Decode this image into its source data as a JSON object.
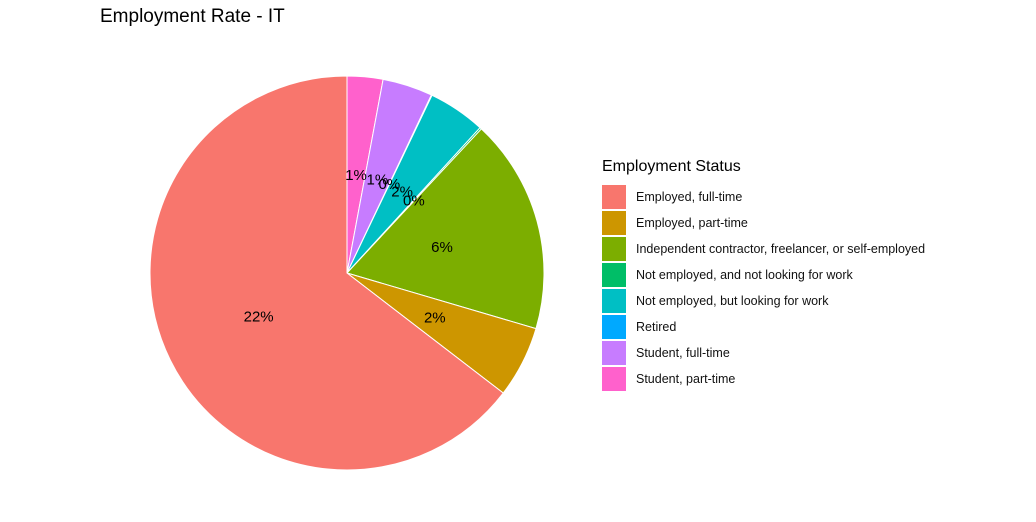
{
  "chart_data": {
    "type": "pie",
    "title": "Employment Rate - IT",
    "legend_title": "Employment Status",
    "legend_position": "right",
    "slices": [
      {
        "name": "Employed, full-time",
        "value": 22,
        "label": "22%",
        "color": "#F8766D"
      },
      {
        "name": "Employed, part-time",
        "value": 2,
        "label": "2%",
        "color": "#CD9600"
      },
      {
        "name": "Independent contractor, freelancer, or self-employed",
        "value": 6,
        "label": "6%",
        "color": "#7CAE00"
      },
      {
        "name": "Not employed, and not looking for work",
        "value": 0.05,
        "label": "0%",
        "color": "#00BE67"
      },
      {
        "name": "Not employed, but looking for work",
        "value": 1.6,
        "label": "2%",
        "color": "#00BFC4"
      },
      {
        "name": "Retired",
        "value": 0.02,
        "label": "0%",
        "color": "#00A9FF"
      },
      {
        "name": "Student, full-time",
        "value": 1.4,
        "label": "1%",
        "color": "#C77CFF"
      },
      {
        "name": "Student, part-time",
        "value": 1.0,
        "label": "1%",
        "color": "#FF61CC"
      }
    ]
  }
}
